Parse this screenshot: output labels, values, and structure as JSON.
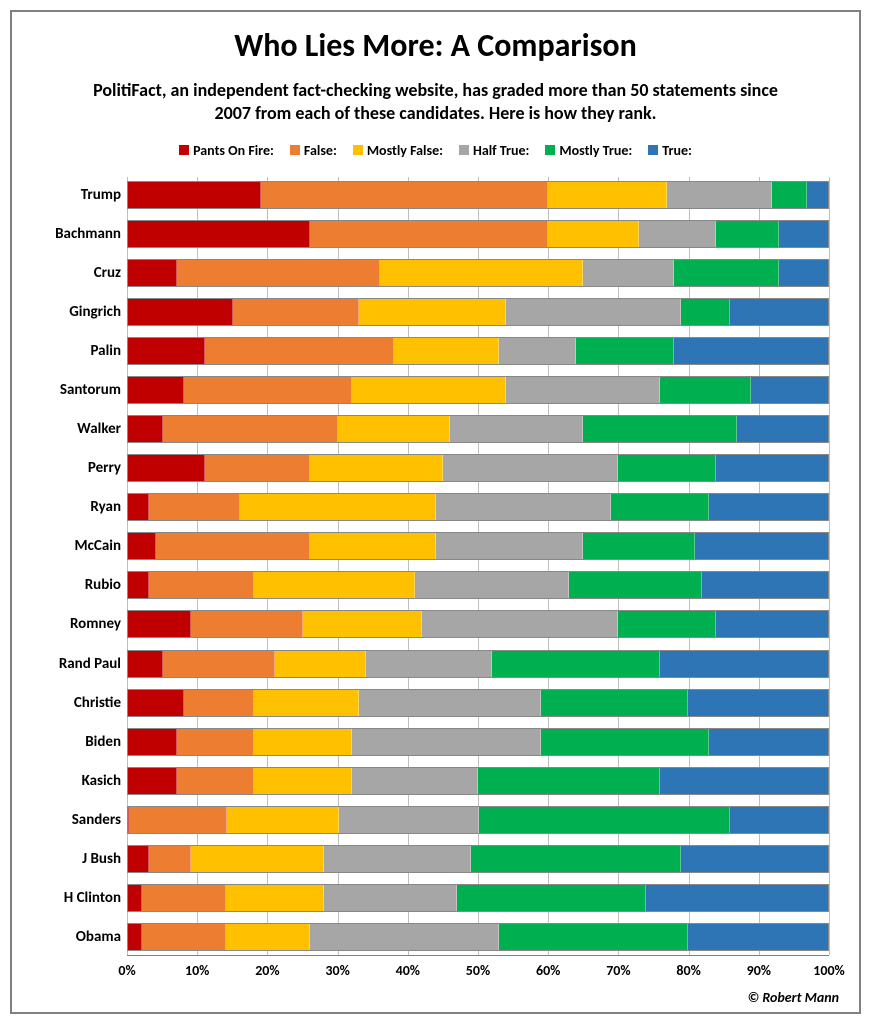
{
  "title": "Who Lies More: A Comparison",
  "subtitle": "PolitiFact, an independent fact-checking website, has graded more than 50 statements since 2007 from each of these candidates. Here is how they rank.",
  "credit": "© Robert Mann",
  "chart": {
    "type": "stacked_horizontal_bar",
    "xlim": [
      0,
      100
    ],
    "xticks": [
      0,
      10,
      20,
      30,
      40,
      50,
      60,
      70,
      80,
      90,
      100
    ],
    "xtick_suffix": "%",
    "grid_color": "#bfbfbf",
    "border_color": "#808080",
    "background_color": "#ffffff",
    "label_fontsize": 15,
    "tick_fontsize": 14,
    "series": [
      {
        "key": "pants_on_fire",
        "label": "Pants On Fire:",
        "color": "#c00000"
      },
      {
        "key": "false",
        "label": "False:",
        "color": "#ed7d31"
      },
      {
        "key": "mostly_false",
        "label": "Mostly False:",
        "color": "#ffc000"
      },
      {
        "key": "half_true",
        "label": "Half True:",
        "color": "#a6a6a6"
      },
      {
        "key": "mostly_true",
        "label": "Mostly True:",
        "color": "#00b050"
      },
      {
        "key": "true",
        "label": "True:",
        "color": "#2e75b6"
      }
    ],
    "rows": [
      {
        "label": "Trump",
        "values": [
          19,
          41,
          17,
          15,
          5,
          3
        ]
      },
      {
        "label": "Bachmann",
        "values": [
          26,
          34,
          13,
          11,
          9,
          7
        ]
      },
      {
        "label": "Cruz",
        "values": [
          7,
          29,
          29,
          13,
          15,
          7
        ]
      },
      {
        "label": "Gingrich",
        "values": [
          15,
          18,
          21,
          25,
          7,
          14
        ]
      },
      {
        "label": "Palin",
        "values": [
          11,
          27,
          15,
          11,
          14,
          22
        ]
      },
      {
        "label": "Santorum",
        "values": [
          8,
          24,
          22,
          22,
          13,
          11
        ]
      },
      {
        "label": "Walker",
        "values": [
          5,
          25,
          16,
          19,
          22,
          13
        ]
      },
      {
        "label": "Perry",
        "values": [
          11,
          15,
          19,
          25,
          14,
          16
        ]
      },
      {
        "label": "Ryan",
        "values": [
          3,
          13,
          28,
          25,
          14,
          17
        ]
      },
      {
        "label": "McCain",
        "values": [
          4,
          22,
          18,
          21,
          16,
          19
        ]
      },
      {
        "label": "Rubio",
        "values": [
          3,
          15,
          23,
          22,
          19,
          18
        ]
      },
      {
        "label": "Romney",
        "values": [
          9,
          16,
          17,
          28,
          14,
          16
        ]
      },
      {
        "label": "Rand Paul",
        "values": [
          5,
          16,
          13,
          18,
          24,
          24
        ]
      },
      {
        "label": "Christie",
        "values": [
          8,
          10,
          15,
          26,
          21,
          20
        ]
      },
      {
        "label": "Biden",
        "values": [
          7,
          11,
          14,
          27,
          24,
          17
        ]
      },
      {
        "label": "Kasich",
        "values": [
          7,
          11,
          14,
          18,
          26,
          24
        ]
      },
      {
        "label": "Sanders",
        "values": [
          0,
          14,
          16,
          20,
          36,
          14
        ]
      },
      {
        "label": "J Bush",
        "values": [
          3,
          6,
          19,
          21,
          30,
          21
        ]
      },
      {
        "label": "H Clinton",
        "values": [
          2,
          12,
          14,
          19,
          27,
          26
        ]
      },
      {
        "label": "Obama",
        "values": [
          2,
          12,
          12,
          27,
          27,
          20
        ]
      }
    ]
  }
}
